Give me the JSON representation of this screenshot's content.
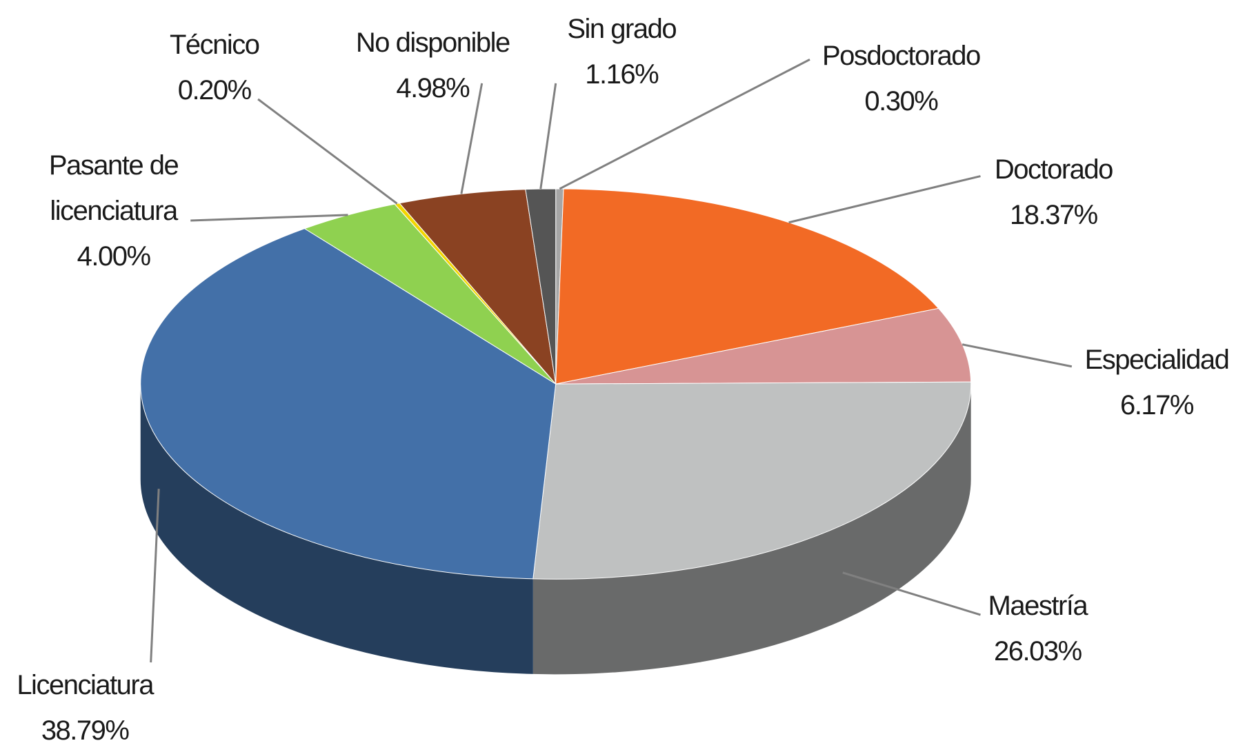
{
  "chart_data": {
    "type": "pie",
    "categories": [
      "Posdoctorado",
      "Doctorado",
      "Especialidad",
      "Maestría",
      "Licenciatura",
      "Pasante de licenciatura",
      "Técnico",
      "No disponible",
      "Sin grado"
    ],
    "values": [
      0.3,
      18.37,
      6.17,
      26.03,
      38.79,
      4.0,
      0.2,
      4.98,
      1.16
    ],
    "value_labels": [
      "0.30%",
      "18.37%",
      "6.17%",
      "26.03%",
      "38.79%",
      "4.00%",
      "0.20%",
      "4.98%",
      "1.16%"
    ],
    "colors": [
      "#a6a6a6",
      "#f26a25",
      "#d79494",
      "#bfc1c1",
      "#4370a8",
      "#8fd150",
      "#f2d600",
      "#8a4222",
      "#555555"
    ]
  }
}
